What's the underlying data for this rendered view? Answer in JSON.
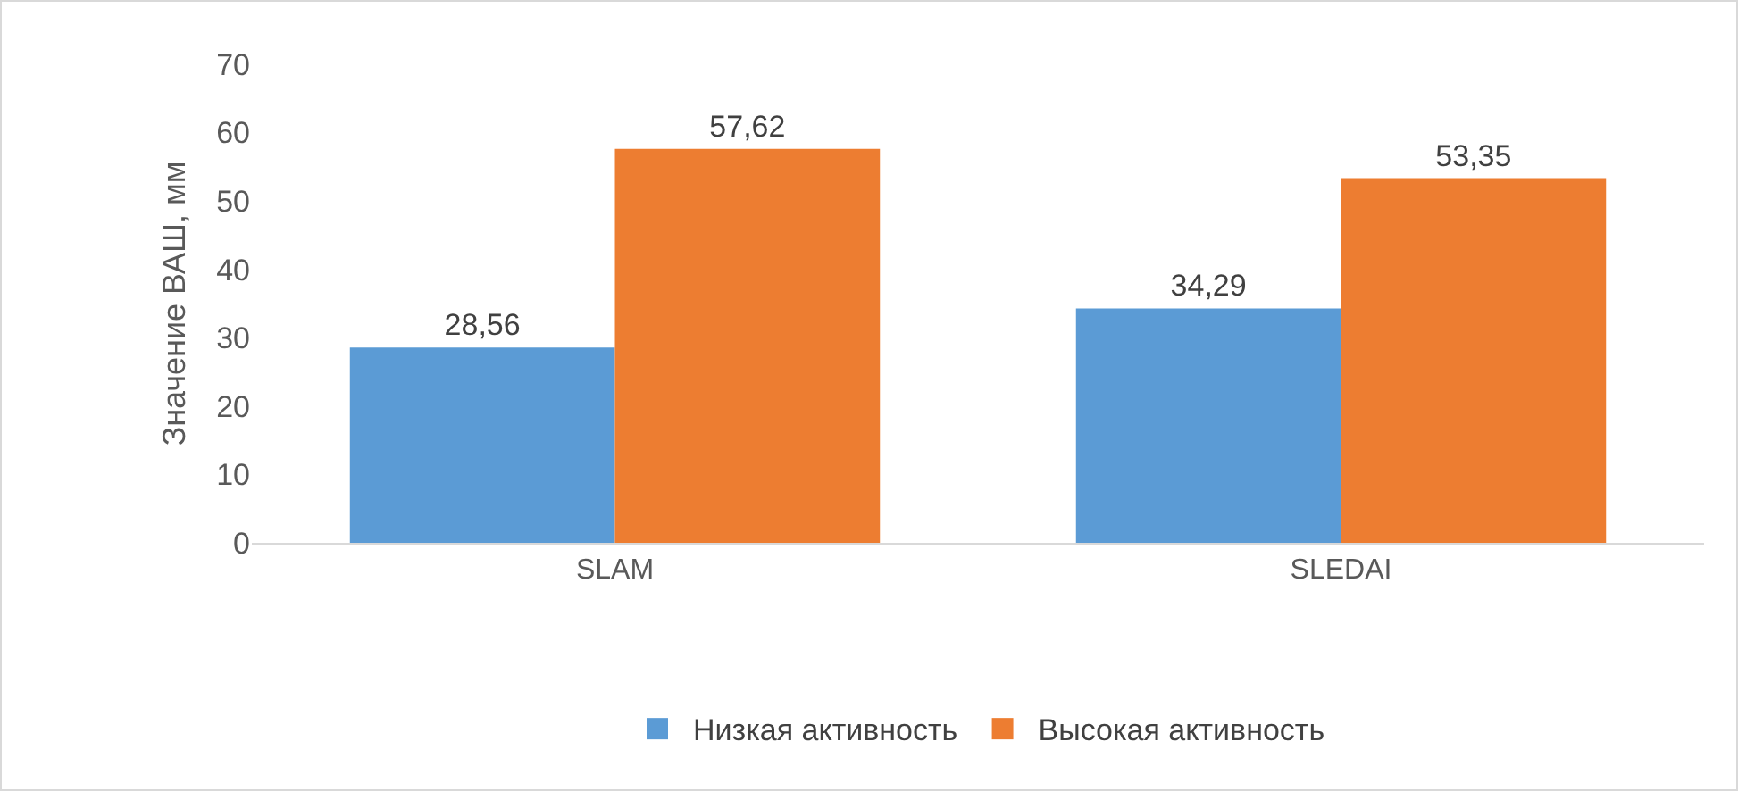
{
  "chart_data": {
    "type": "bar",
    "ylabel": "Значение ВАШ, мм",
    "categories": [
      "SLAM",
      "SLEDAI"
    ],
    "ylim": [
      0,
      70
    ],
    "yticks": [
      0,
      10,
      20,
      30,
      40,
      50,
      60,
      70
    ],
    "legend": "bottom",
    "series": [
      {
        "name": "Низкая активность",
        "color": "#5b9bd5",
        "values": [
          28.56,
          34.29
        ],
        "value_labels": [
          "28,56",
          "34,29"
        ]
      },
      {
        "name": "Высокая активность",
        "color": "#ed7d31",
        "values": [
          57.62,
          53.35
        ],
        "value_labels": [
          "57,62",
          "53,35"
        ]
      }
    ]
  }
}
